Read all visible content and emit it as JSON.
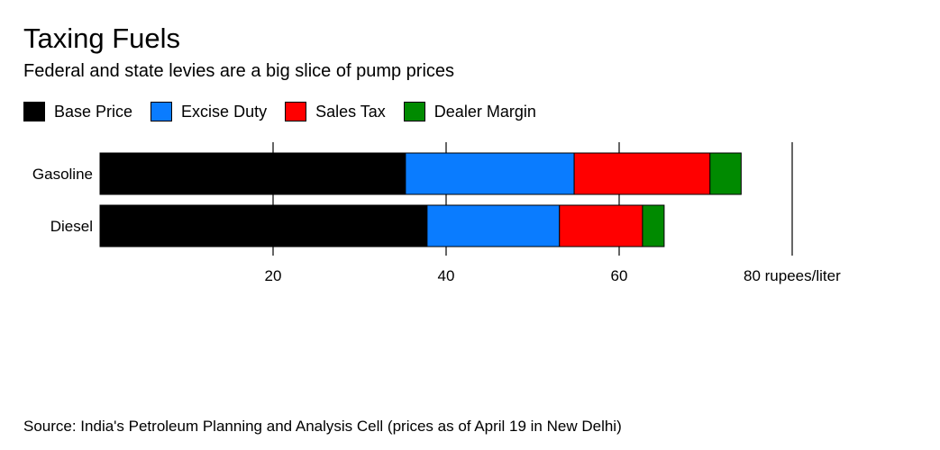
{
  "header": {
    "title": "Taxing Fuels",
    "subtitle": "Federal and state levies are a big slice of pump prices"
  },
  "footer": {
    "source": "Source: India's Petroleum Planning and Analysis Cell (prices as of April 19 in New Delhi)"
  },
  "chart_data": {
    "type": "bar",
    "orientation": "horizontal",
    "stacked": true,
    "categories": [
      "Gasoline",
      "Diesel"
    ],
    "series": [
      {
        "name": "Base Price",
        "color": "#000000",
        "values": [
          35.3,
          37.8
        ]
      },
      {
        "name": "Excise Duty",
        "color": "#0a7cff",
        "values": [
          19.5,
          15.3
        ]
      },
      {
        "name": "Sales Tax",
        "color": "#ff0000",
        "values": [
          15.7,
          9.6
        ]
      },
      {
        "name": "Dealer Margin",
        "color": "#008a00",
        "values": [
          3.6,
          2.5
        ]
      }
    ],
    "xlim": [
      0,
      80
    ],
    "ticks": [
      {
        "value": 20,
        "label": "20"
      },
      {
        "value": 40,
        "label": "40"
      },
      {
        "value": 60,
        "label": "60"
      },
      {
        "value": 80,
        "label": "80 rupees/liter"
      }
    ],
    "legend_position": "top-left",
    "grid": false
  }
}
